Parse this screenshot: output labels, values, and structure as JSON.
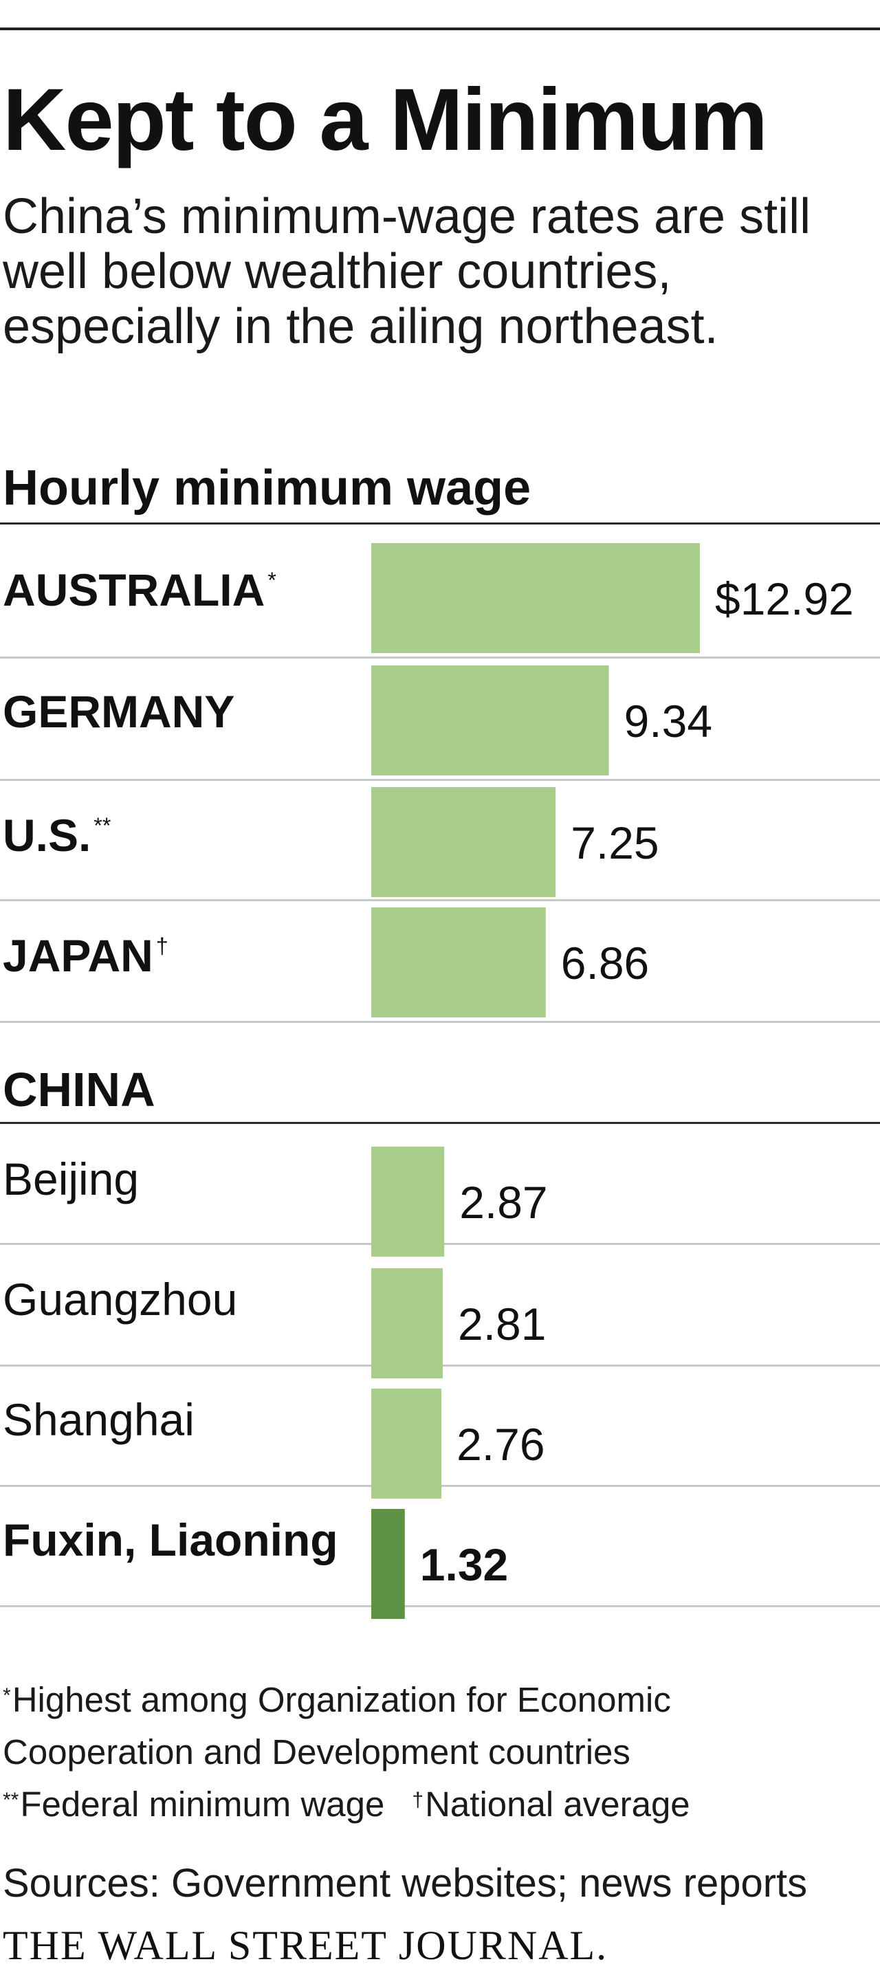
{
  "headline": "Kept to a Minimum",
  "subhead": "China’s minimum-wage rates are still well below wealthier countries, especially in the ailing northeast.",
  "colors": {
    "bar": "#a9cd8a",
    "bar_highlight": "#5e9346"
  },
  "chart_data": {
    "type": "bar",
    "orientation": "horizontal",
    "title": "Hourly minimum wage",
    "groups": [
      {
        "label": "",
        "rows": [
          {
            "label": "AUSTRALIA",
            "marker": "*",
            "value": 12.92,
            "value_label": "$12.92",
            "highlight": false
          },
          {
            "label": "GERMANY",
            "marker": "",
            "value": 9.34,
            "value_label": "9.34",
            "highlight": false
          },
          {
            "label": "U.S.",
            "marker": "**",
            "value": 7.25,
            "value_label": "7.25",
            "highlight": false
          },
          {
            "label": "JAPAN",
            "marker": "†",
            "value": 6.86,
            "value_label": "6.86",
            "highlight": false
          }
        ]
      },
      {
        "label": "CHINA",
        "rows": [
          {
            "label": "Beijing",
            "marker": "",
            "value": 2.87,
            "value_label": "2.87",
            "highlight": false
          },
          {
            "label": "Guangzhou",
            "marker": "",
            "value": 2.81,
            "value_label": "2.81",
            "highlight": false
          },
          {
            "label": "Shanghai",
            "marker": "",
            "value": 2.76,
            "value_label": "2.76",
            "highlight": false
          },
          {
            "label": "Fuxin, Liaoning",
            "marker": "",
            "value": 1.32,
            "value_label": "1.32",
            "highlight": true
          }
        ]
      }
    ],
    "xlim": [
      0,
      12.92
    ],
    "grid": false,
    "legend": "none"
  },
  "footnotes": {
    "line1_sym": "*",
    "line1_a": "Highest among Organization for Economic",
    "line1_b": "Cooperation and Development countries",
    "line2_sym": "**",
    "line2": "Federal minimum wage",
    "line3_sym": "†",
    "line3": "National average"
  },
  "source": "Sources: Government websites; news reports",
  "brand": "THE WALL STREET JOURNAL."
}
